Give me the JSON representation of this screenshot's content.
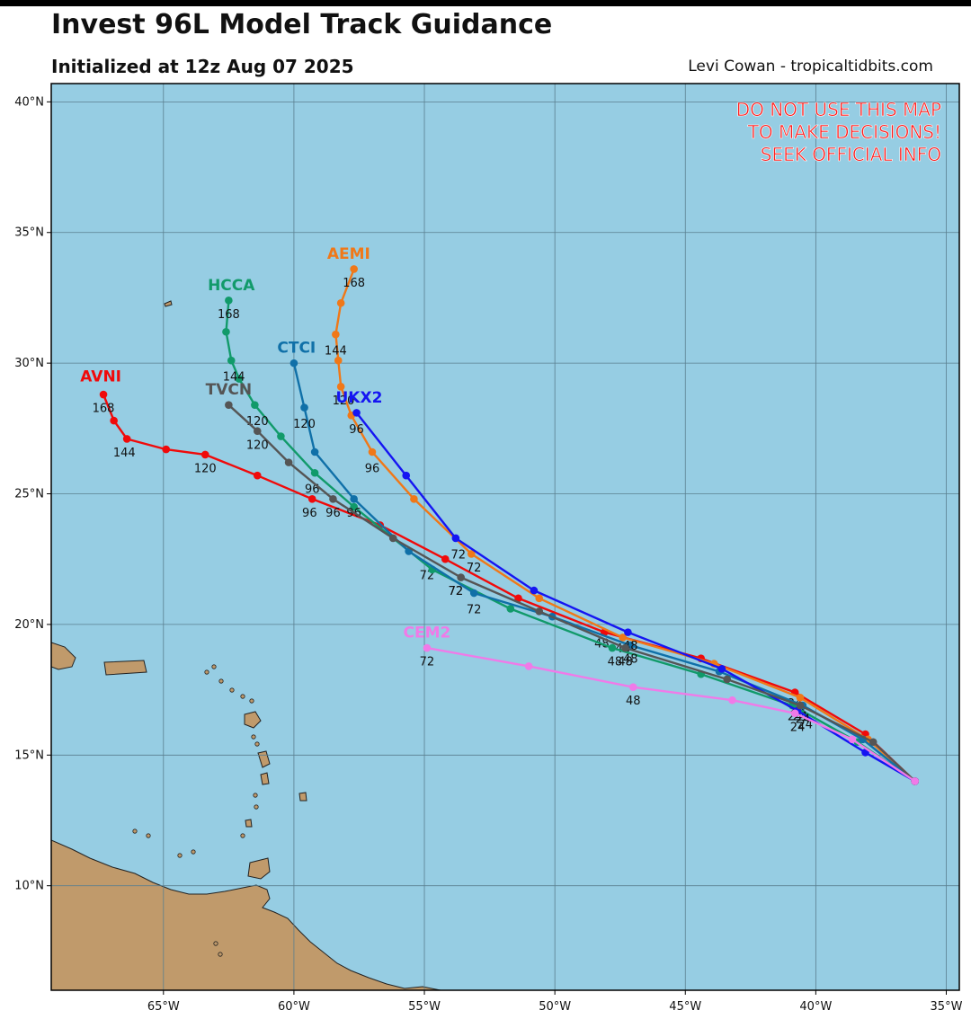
{
  "header": {
    "title": "Invest 96L Model Track Guidance",
    "subtitle": "Initialized at 12z Aug 07 2025",
    "credit": "Levi Cowan - tropicaltidbits.com"
  },
  "warning": {
    "lines": [
      "DO NOT USE THIS MAP",
      "TO MAKE DECISIONS!",
      "SEEK OFFICIAL INFO"
    ],
    "color": "#ff1a1a"
  },
  "colors": {
    "ocean": "#96cde3",
    "land": "#c09a6b",
    "grid": "#5a7f8f"
  },
  "axes": {
    "lon_ticks": [
      "65°W",
      "60°W",
      "55°W",
      "50°W",
      "45°W",
      "40°W",
      "35°W"
    ],
    "lat_ticks": [
      "10°N",
      "15°N",
      "20°N",
      "25°N",
      "30°N",
      "35°N",
      "40°N"
    ]
  },
  "chart_data": {
    "type": "map-track",
    "lon_range": [
      -69.3,
      -34.5
    ],
    "lat_range": [
      6.0,
      40.7
    ],
    "grid": true,
    "tracks": [
      {
        "name": "AVNI",
        "color": "#f00a0a",
        "points": [
          [
            -36.2,
            14.0
          ],
          [
            -38.1,
            15.8
          ],
          [
            -40.8,
            17.4
          ],
          [
            -44.4,
            18.7
          ],
          [
            -48.1,
            19.7
          ],
          [
            -51.4,
            21.0
          ],
          [
            -54.2,
            22.5
          ],
          [
            -56.7,
            23.8
          ],
          [
            -59.3,
            24.8
          ],
          [
            -61.4,
            25.7
          ],
          [
            -63.4,
            26.5
          ],
          [
            -64.9,
            26.7
          ],
          [
            -66.4,
            27.1
          ],
          [
            -66.9,
            27.8
          ],
          [
            -67.3,
            28.8
          ]
        ],
        "labels": [
          {
            "text": "24",
            "lon": -40.8,
            "lat": 17.0
          },
          {
            "text": "48",
            "lon": -48.2,
            "lat": 19.3
          },
          {
            "text": "72",
            "lon": -54.9,
            "lat": 21.9
          },
          {
            "text": "96",
            "lon": -59.4,
            "lat": 24.3
          },
          {
            "text": "120",
            "lon": -63.4,
            "lat": 26.0
          },
          {
            "text": "144",
            "lon": -66.5,
            "lat": 26.6
          },
          {
            "text": "168",
            "lon": -67.3,
            "lat": 28.3
          }
        ],
        "name_pos": {
          "lon": -67.4,
          "lat": 29.5
        }
      },
      {
        "name": "AEMI",
        "color": "#f07818",
        "points": [
          [
            -36.2,
            14.0
          ],
          [
            -38.0,
            15.6
          ],
          [
            -40.6,
            17.2
          ],
          [
            -43.9,
            18.5
          ],
          [
            -47.4,
            19.5
          ],
          [
            -50.6,
            21.0
          ],
          [
            -53.2,
            22.7
          ],
          [
            -55.4,
            24.8
          ],
          [
            -57.0,
            26.6
          ],
          [
            -57.8,
            28.0
          ],
          [
            -58.2,
            29.1
          ],
          [
            -58.3,
            30.1
          ],
          [
            -58.4,
            31.1
          ],
          [
            -58.2,
            32.3
          ],
          [
            -57.7,
            33.6
          ]
        ],
        "labels": [
          {
            "text": "24",
            "lon": -40.7,
            "lat": 16.8
          },
          {
            "text": "48",
            "lon": -47.4,
            "lat": 19.1
          },
          {
            "text": "72",
            "lon": -53.1,
            "lat": 22.2
          },
          {
            "text": "96",
            "lon": -57.0,
            "lat": 26.0
          },
          {
            "text": "120",
            "lon": -58.1,
            "lat": 28.6
          },
          {
            "text": "144",
            "lon": -58.4,
            "lat": 30.5
          },
          {
            "text": "168",
            "lon": -57.7,
            "lat": 33.1
          }
        ],
        "name_pos": {
          "lon": -57.9,
          "lat": 34.2
        }
      },
      {
        "name": "HCCA",
        "color": "#119a6a",
        "points": [
          [
            -36.2,
            14.0
          ],
          [
            -38.4,
            15.5
          ],
          [
            -40.9,
            16.9
          ],
          [
            -44.4,
            18.1
          ],
          [
            -47.8,
            19.1
          ],
          [
            -51.7,
            20.6
          ],
          [
            -54.7,
            22.1
          ],
          [
            -57.7,
            24.5
          ],
          [
            -59.2,
            25.8
          ],
          [
            -60.5,
            27.2
          ],
          [
            -61.5,
            28.4
          ],
          [
            -62.1,
            29.4
          ],
          [
            -62.4,
            30.1
          ],
          [
            -62.6,
            31.2
          ],
          [
            -62.5,
            32.4
          ]
        ],
        "labels": [
          {
            "text": "24",
            "lon": -40.8,
            "lat": 16.5
          },
          {
            "text": "48",
            "lon": -47.7,
            "lat": 18.6
          },
          {
            "text": "72",
            "lon": -53.8,
            "lat": 21.3
          },
          {
            "text": "96",
            "lon": -59.3,
            "lat": 25.2
          },
          {
            "text": "120",
            "lon": -61.4,
            "lat": 27.8
          },
          {
            "text": "144",
            "lon": -62.3,
            "lat": 29.5
          },
          {
            "text": "168",
            "lon": -62.5,
            "lat": 31.9
          }
        ],
        "name_pos": {
          "lon": -62.4,
          "lat": 33.0
        }
      },
      {
        "name": "CTCI",
        "color": "#1070a8",
        "points": [
          [
            -36.2,
            14.0
          ],
          [
            -38.2,
            15.6
          ],
          [
            -40.5,
            16.9
          ],
          [
            -43.7,
            18.2
          ],
          [
            -47.1,
            19.2
          ],
          [
            -50.1,
            20.3
          ],
          [
            -53.1,
            21.2
          ],
          [
            -55.6,
            22.8
          ],
          [
            -57.7,
            24.8
          ],
          [
            -59.2,
            26.6
          ],
          [
            -59.6,
            28.3
          ],
          [
            -60.0,
            30.0
          ]
        ],
        "labels": [
          {
            "text": "24",
            "lon": -40.6,
            "lat": 16.5
          },
          {
            "text": "48",
            "lon": -47.1,
            "lat": 18.7
          },
          {
            "text": "72",
            "lon": -53.1,
            "lat": 20.6
          },
          {
            "text": "96",
            "lon": -57.7,
            "lat": 24.3
          },
          {
            "text": "120",
            "lon": -59.6,
            "lat": 27.7
          }
        ],
        "name_pos": {
          "lon": -59.9,
          "lat": 30.6
        }
      },
      {
        "name": "UKX2",
        "color": "#1515f2",
        "points": [
          [
            -36.2,
            14.0
          ],
          [
            -38.1,
            15.1
          ],
          [
            -40.7,
            16.7
          ],
          [
            -43.6,
            18.3
          ],
          [
            -47.2,
            19.7
          ],
          [
            -50.8,
            21.3
          ],
          [
            -53.8,
            23.3
          ],
          [
            -55.7,
            25.7
          ],
          [
            -57.6,
            28.1
          ]
        ],
        "labels": [
          {
            "text": "24",
            "lon": -40.4,
            "lat": 16.2
          },
          {
            "text": "48",
            "lon": -47.1,
            "lat": 19.2
          },
          {
            "text": "72",
            "lon": -53.7,
            "lat": 22.7
          },
          {
            "text": "96",
            "lon": -57.6,
            "lat": 27.5
          }
        ],
        "name_pos": {
          "lon": -57.5,
          "lat": 28.7
        }
      },
      {
        "name": "TVCN",
        "color": "#555555",
        "points": [
          [
            -36.2,
            14.0
          ],
          [
            -37.8,
            15.5
          ],
          [
            -40.6,
            16.9
          ],
          [
            -43.4,
            17.9
          ],
          [
            -47.3,
            19.1
          ],
          [
            -50.6,
            20.5
          ],
          [
            -53.6,
            21.8
          ],
          [
            -56.2,
            23.3
          ],
          [
            -58.5,
            24.8
          ],
          [
            -60.2,
            26.2
          ],
          [
            -61.4,
            27.4
          ],
          [
            -62.5,
            28.4
          ]
        ],
        "labels": [
          {
            "text": "24",
            "lon": -40.5,
            "lat": 16.4
          },
          {
            "text": "48",
            "lon": -47.3,
            "lat": 18.6
          },
          {
            "text": "72",
            "lon": -53.8,
            "lat": 21.3
          },
          {
            "text": "96",
            "lon": -58.5,
            "lat": 24.3
          },
          {
            "text": "120",
            "lon": -61.4,
            "lat": 26.9
          }
        ],
        "name_pos": {
          "lon": -62.5,
          "lat": 29.0
        }
      },
      {
        "name": "CEM2",
        "color": "#f07ae8",
        "points": [
          [
            -36.2,
            14.0
          ],
          [
            -38.6,
            15.6
          ],
          [
            -40.8,
            16.6
          ],
          [
            -43.2,
            17.1
          ],
          [
            -47.0,
            17.6
          ],
          [
            -51.0,
            18.4
          ],
          [
            -54.9,
            19.1
          ]
        ],
        "labels": [
          {
            "text": "24",
            "lon": -40.7,
            "lat": 16.1
          },
          {
            "text": "48",
            "lon": -47.0,
            "lat": 17.1
          },
          {
            "text": "72",
            "lon": -54.9,
            "lat": 18.6
          }
        ],
        "name_pos": {
          "lon": -54.9,
          "lat": 19.7
        }
      }
    ]
  }
}
